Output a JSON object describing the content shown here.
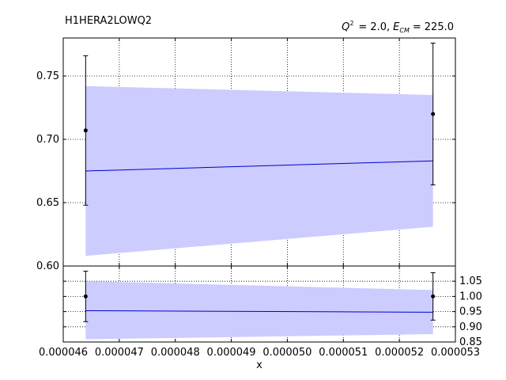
{
  "title_left": "H1HERA2LOWQ2",
  "title_right": {
    "q_symbol": "Q",
    "q_exp": "2",
    "q_value": "2.0",
    "e_symbol": "E",
    "e_sub": "CM",
    "e_value": "225.0",
    "separator": ",",
    "equals": "="
  },
  "colors": {
    "band": "#ccccff",
    "line": "#0000cc",
    "points": "#000000",
    "grid": "#000000"
  },
  "chart_data": [
    {
      "type": "line",
      "panel": "top",
      "xlabel": "",
      "ylabel": "",
      "xlim": [
        4.6e-05,
        5.3e-05
      ],
      "ylim": [
        0.6,
        0.78
      ],
      "yticks": [
        0.6,
        0.65,
        0.7,
        0.75
      ],
      "ytick_labels": [
        "0.60",
        "0.65",
        "0.70",
        "0.75"
      ],
      "grid": true,
      "series": [
        {
          "kind": "band",
          "x": [
            4.64e-05,
            5.26e-05
          ],
          "lower": [
            0.608,
            0.631
          ],
          "upper": [
            0.742,
            0.735
          ]
        },
        {
          "kind": "line",
          "x": [
            4.64e-05,
            5.26e-05
          ],
          "y": [
            0.675,
            0.683
          ]
        },
        {
          "kind": "errorbar",
          "x": [
            4.64e-05,
            5.26e-05
          ],
          "y": [
            0.707,
            0.72
          ],
          "ylow": [
            0.648,
            0.664
          ],
          "yhigh": [
            0.766,
            0.776
          ]
        }
      ]
    },
    {
      "type": "line",
      "panel": "ratio",
      "xlabel": "x",
      "ylabel": "",
      "xlim": [
        4.6e-05,
        5.3e-05
      ],
      "ylim": [
        0.85,
        1.1
      ],
      "xticks": [
        4.6e-05,
        4.7e-05,
        4.8e-05,
        4.9e-05,
        5e-05,
        5.1e-05,
        5.2e-05,
        5.3e-05
      ],
      "xtick_labels": [
        "0.000046",
        "0.000047",
        "0.000048",
        "0.000049",
        "0.000050",
        "0.000051",
        "0.000052",
        "0.000053"
      ],
      "yticks": [
        0.85,
        0.9,
        0.95,
        1.0,
        1.05
      ],
      "ytick_labels": [
        "0.85",
        "0.90",
        "0.95",
        "1.00",
        "1.05"
      ],
      "grid": true,
      "series": [
        {
          "kind": "band",
          "x": [
            4.64e-05,
            5.26e-05
          ],
          "lower": [
            0.859,
            0.876
          ],
          "upper": [
            1.05,
            1.021
          ]
        },
        {
          "kind": "line",
          "x": [
            4.64e-05,
            5.26e-05
          ],
          "y": [
            0.953,
            0.948
          ]
        },
        {
          "kind": "errorbar",
          "x": [
            4.64e-05,
            5.26e-05
          ],
          "y": [
            1.0,
            1.0
          ],
          "ylow": [
            0.917,
            0.922
          ],
          "yhigh": [
            1.083,
            1.078
          ]
        }
      ]
    }
  ]
}
